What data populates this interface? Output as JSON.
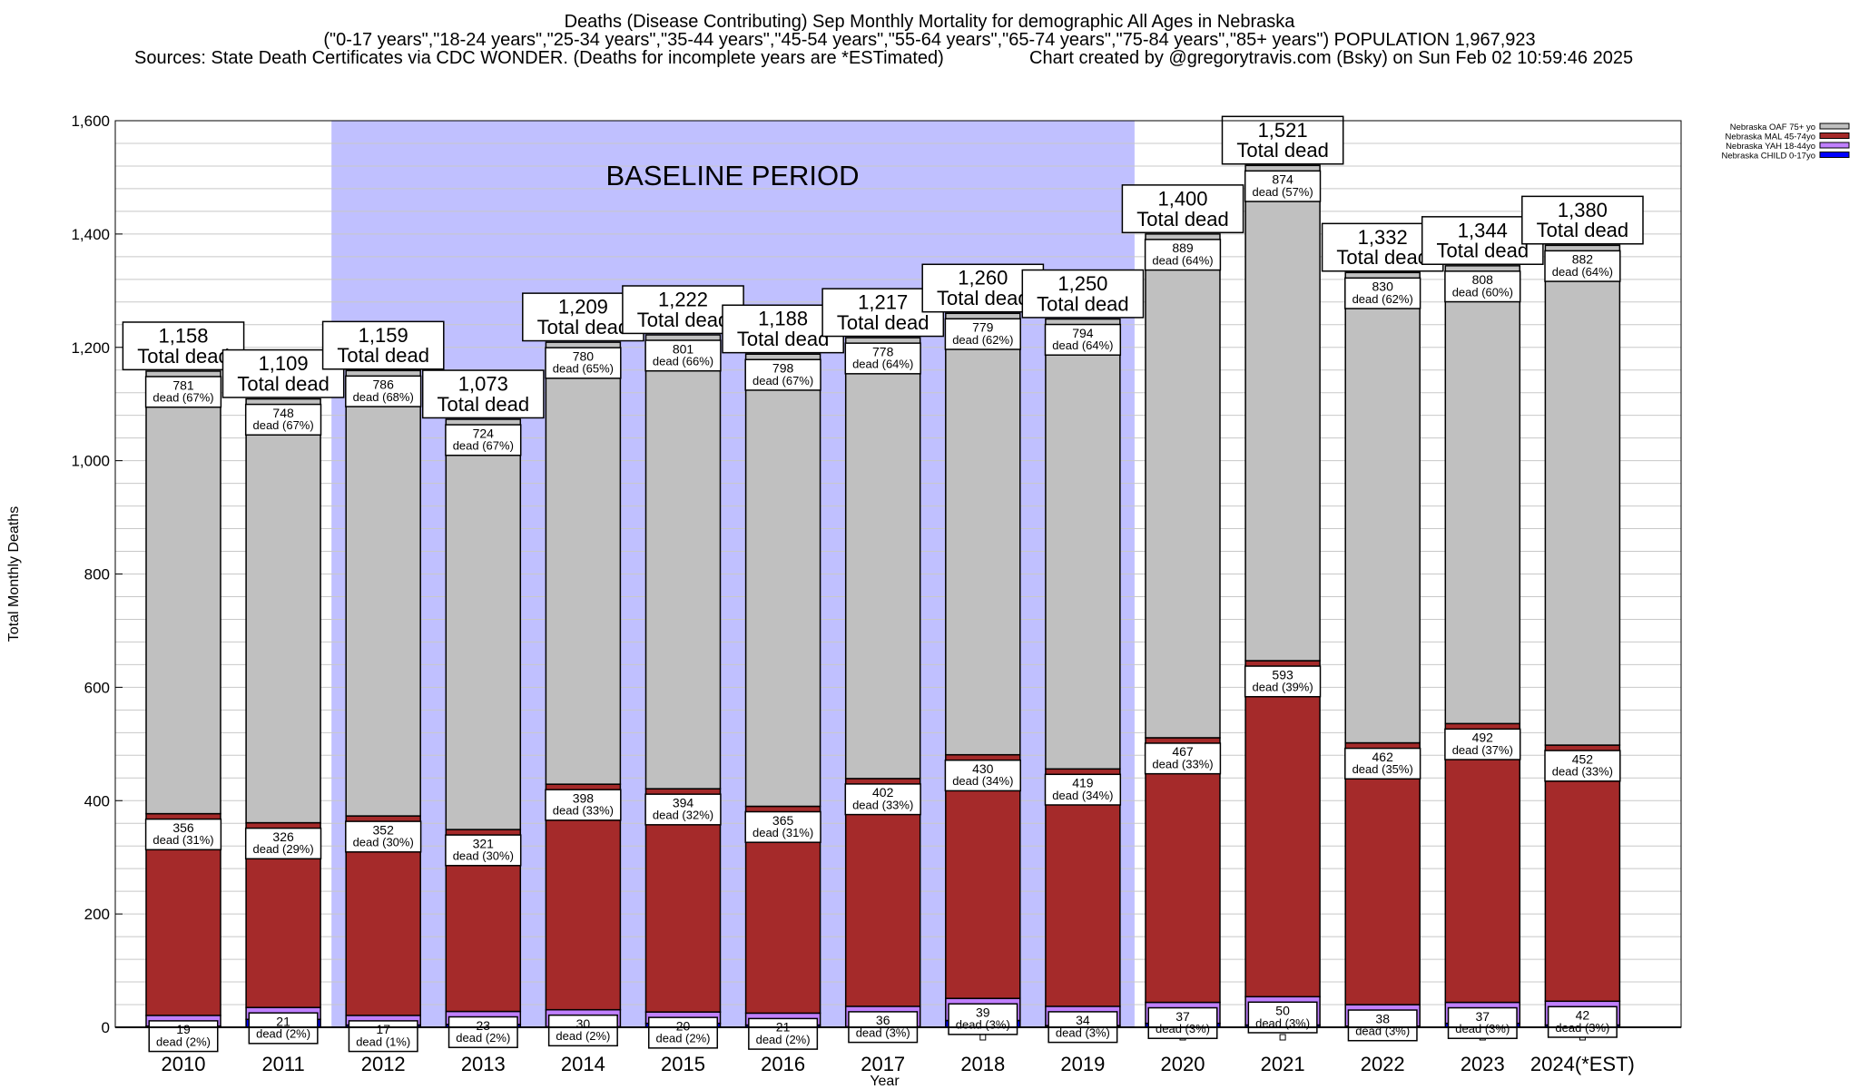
{
  "chart_data": {
    "type": "bar",
    "stacked": true,
    "title_lines": [
      "Deaths (Disease Contributing) Sep Monthly Mortality for demographic All Ages in Nebraska",
      "(\"0-17 years\",\"18-24 years\",\"25-34 years\",\"35-44 years\",\"45-54 years\",\"55-64 years\",\"65-74 years\",\"75-84 years\",\"85+ years\") POPULATION 1,967,923"
    ],
    "sources": "Sources: State Death Certificates via CDC WONDER. (Deaths for incomplete years are *ESTimated)",
    "credit": "Chart created by @gregorytravis.com (Bsky) on Sun Feb 02 10:59:46 2025",
    "xlabel": "Year",
    "ylabel": "Total Monthly Deaths",
    "ylim": [
      0,
      1600
    ],
    "yticks": [
      0,
      200,
      400,
      600,
      800,
      1000,
      1200,
      1400,
      1600
    ],
    "ytick_labels": [
      "0",
      "200",
      "400",
      "600",
      "800",
      "1,000",
      "1,200",
      "1,400",
      "1,600"
    ],
    "grid": true,
    "legend_position": "top-right",
    "annotation": "BASELINE PERIOD",
    "baseline_range": [
      "2012",
      "2019"
    ],
    "total_suffix": "Total dead",
    "dead_word": "dead",
    "categories": [
      "2010",
      "2011",
      "2012",
      "2013",
      "2014",
      "2015",
      "2016",
      "2017",
      "2018",
      "2019",
      "2020",
      "2021",
      "2022",
      "2023",
      "2024(*EST)"
    ],
    "totals": [
      1158,
      1109,
      1159,
      1073,
      1209,
      1222,
      1188,
      1217,
      1260,
      1250,
      1400,
      1521,
      1332,
      1344,
      1380
    ],
    "total_labels": [
      "1,158",
      "1,109",
      "1,159",
      "1,073",
      "1,209",
      "1,222",
      "1,188",
      "1,217",
      "1,260",
      "1,250",
      "1,400",
      "1,521",
      "1,332",
      "1,344",
      "1,380"
    ],
    "series": [
      {
        "name": "Nebraska CHILD 0-17yo",
        "color": "#0000ff",
        "values": [
          2,
          14,
          4,
          5,
          1,
          7,
          4,
          1,
          12,
          3,
          7,
          4,
          2,
          7,
          4
        ]
      },
      {
        "name": "Nebraska YAH 18-44yo",
        "color": "#c080ff",
        "values": [
          19,
          21,
          17,
          23,
          30,
          20,
          21,
          36,
          39,
          34,
          37,
          50,
          38,
          37,
          42
        ],
        "pct": [
          "2%",
          "2%",
          "1%",
          "2%",
          "2%",
          "2%",
          "2%",
          "3%",
          "3%",
          "3%",
          "3%",
          "3%",
          "3%",
          "3%",
          "3%"
        ]
      },
      {
        "name": "Nebraska MAL 45-74yo",
        "color": "#a52a2a",
        "values": [
          356,
          326,
          352,
          321,
          398,
          394,
          365,
          402,
          430,
          419,
          467,
          593,
          462,
          492,
          452
        ],
        "pct": [
          "31%",
          "29%",
          "30%",
          "30%",
          "33%",
          "32%",
          "31%",
          "33%",
          "34%",
          "34%",
          "33%",
          "39%",
          "35%",
          "37%",
          "33%"
        ]
      },
      {
        "name": "Nebraska OAF 75+ yo",
        "color": "#c0c0c0",
        "values": [
          781,
          748,
          786,
          724,
          780,
          801,
          798,
          778,
          779,
          794,
          889,
          874,
          830,
          808,
          882
        ],
        "pct": [
          "67%",
          "67%",
          "68%",
          "67%",
          "65%",
          "66%",
          "67%",
          "64%",
          "62%",
          "64%",
          "64%",
          "57%",
          "62%",
          "60%",
          "64%"
        ]
      }
    ],
    "legend_order": [
      "Nebraska OAF 75+ yo",
      "Nebraska MAL 45-74yo",
      "Nebraska YAH 18-44yo",
      "Nebraska CHILD 0-17yo"
    ]
  }
}
